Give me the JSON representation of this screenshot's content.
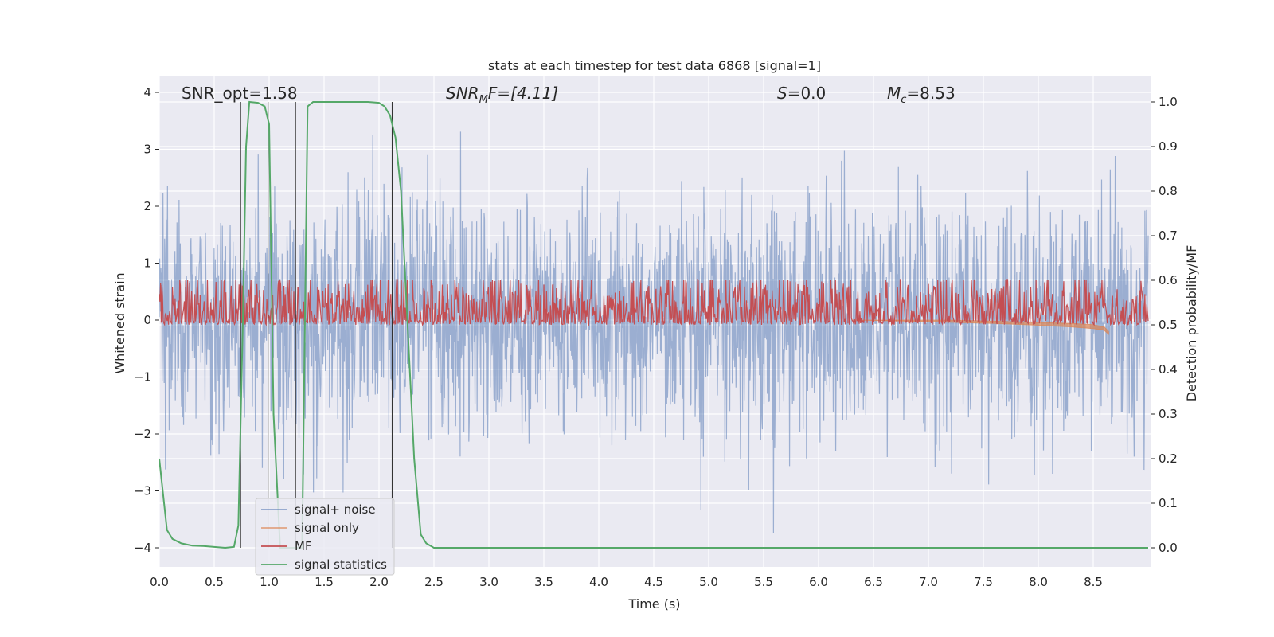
{
  "chart_data": {
    "type": "line",
    "title": "stats at each timestep for test data 6868 [signal=1]",
    "xlabel": "Time (s)",
    "ylabel": "Whitened strain",
    "ylabel_right": "Detection probability/MF",
    "xlim": [
      0.0,
      9.0
    ],
    "ylim": [
      -4.2,
      4.4
    ],
    "ylim_right": [
      -0.05,
      1.04
    ],
    "xticks": [
      "0.0",
      "0.5",
      "1.0",
      "1.5",
      "2.0",
      "2.5",
      "3.0",
      "3.5",
      "4.0",
      "4.5",
      "5.0",
      "5.5",
      "6.0",
      "6.5",
      "7.0",
      "7.5",
      "8.0",
      "8.5"
    ],
    "yticks": [
      "4",
      "3",
      "2",
      "1",
      "0",
      "−1",
      "−2",
      "−3",
      "−4"
    ],
    "yticks_right": [
      "1.0",
      "0.9",
      "0.8",
      "0.7",
      "0.6",
      "0.5",
      "0.4",
      "0.3",
      "0.2",
      "0.1",
      "0.0"
    ],
    "grid": true,
    "legend_placement": "lower-left",
    "annotations": {
      "snr_opt": "SNR_opt=1.58",
      "snr_mf_base": "SNR",
      "snr_mf_sub": "M",
      "snr_mf_rest": "F=[4.11]",
      "s_base": "S",
      "s_rest": "=0.0",
      "mc_base": "M",
      "mc_sub": "c",
      "mc_rest": "=8.53"
    },
    "series": [
      {
        "name": "signal+ noise",
        "color": "#4c72b0",
        "noise_std": 1.0,
        "max_abs": 3.8
      },
      {
        "name": "signal only",
        "color": "#dd8452",
        "x": [
          6.3,
          6.8,
          7.2,
          7.6,
          8.0,
          8.3,
          8.5,
          8.6,
          8.64
        ],
        "upper": [
          0.0,
          0.0,
          0.0,
          -0.02,
          -0.04,
          -0.06,
          -0.08,
          -0.12,
          -0.2
        ],
        "lower": [
          0.0,
          -0.02,
          -0.04,
          -0.06,
          -0.09,
          -0.12,
          -0.15,
          -0.18,
          -0.25
        ]
      },
      {
        "name": "MF",
        "color": "#c44e52",
        "center_right": 0.525,
        "spread_right": 0.045,
        "max_right": 0.6
      },
      {
        "name": "signal statistics",
        "color": "#55a868",
        "x": [
          0.0,
          0.07,
          0.12,
          0.2,
          0.3,
          0.4,
          0.5,
          0.6,
          0.68,
          0.72,
          0.76,
          0.79,
          0.82,
          0.9,
          0.96,
          1.0,
          1.04,
          1.1,
          1.2,
          1.3,
          1.35,
          1.4,
          1.5,
          1.7,
          1.9,
          2.0,
          2.05,
          2.1,
          2.15,
          2.2,
          2.26,
          2.32,
          2.38,
          2.43,
          2.5,
          3.0,
          9.0
        ],
        "y": [
          0.2,
          0.04,
          0.02,
          0.01,
          0.005,
          0.004,
          0.002,
          0.0,
          0.002,
          0.05,
          0.5,
          0.9,
          1.0,
          0.998,
          0.99,
          0.95,
          0.3,
          0.0,
          0.0,
          0.0,
          0.99,
          1.0,
          1.0,
          1.0,
          1.0,
          0.998,
          0.99,
          0.97,
          0.92,
          0.8,
          0.5,
          0.2,
          0.03,
          0.01,
          0.0,
          0.0,
          0.0
        ]
      },
      {
        "name": "markers",
        "color": "#333333",
        "x": [
          0.74,
          0.99,
          1.24,
          2.12
        ]
      }
    ]
  }
}
